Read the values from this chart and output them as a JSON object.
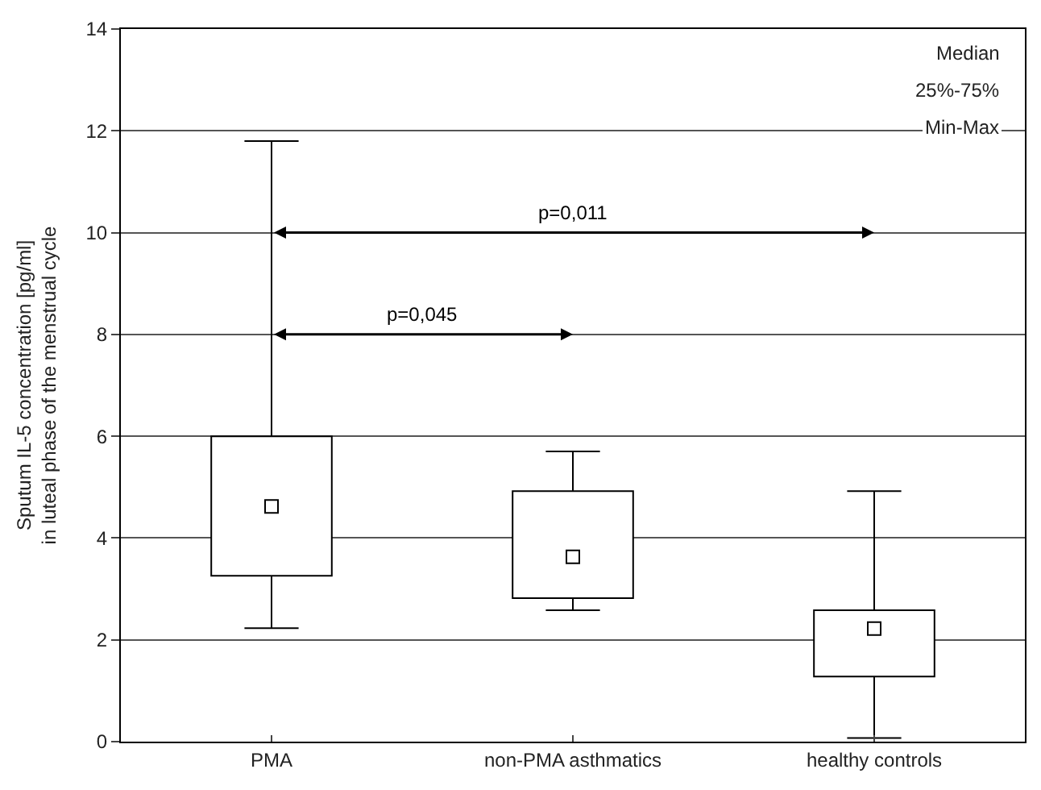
{
  "chart_data": {
    "type": "box",
    "ylabel": "Sputum IL-5 concentration [pg/ml]\nin luteal phase of the menstrual cycle",
    "categories": [
      "PMA",
      "non-PMA asthmatics",
      "healthy controls"
    ],
    "boxes": [
      {
        "low": 2.23,
        "q1": 3.26,
        "median": 4.62,
        "q3": 6.0,
        "high": 11.8
      },
      {
        "low": 2.58,
        "q1": 2.82,
        "median": 3.63,
        "q3": 4.92,
        "high": 5.7
      },
      {
        "low": 0.07,
        "q1": 1.28,
        "median": 2.22,
        "q3": 2.58,
        "high": 4.92
      }
    ],
    "color": "#000000",
    "ylim": [
      0,
      14
    ],
    "yticks": [
      0,
      2,
      4,
      6,
      8,
      10,
      12,
      14
    ],
    "grid": "y",
    "annotations": [
      "Median",
      "25%-75%",
      "Min-Max",
      "p=0,011",
      "p=0,045"
    ]
  }
}
